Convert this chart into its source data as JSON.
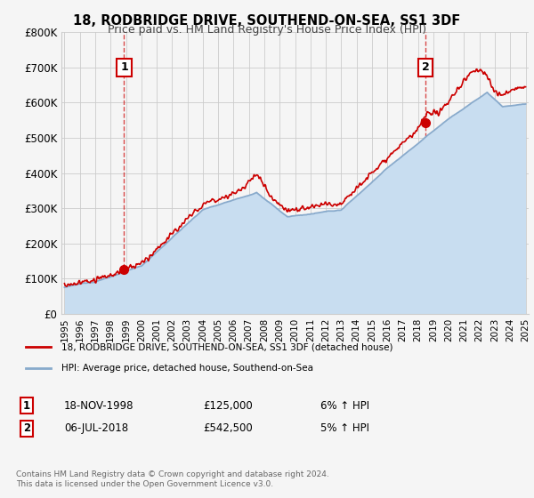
{
  "title": "18, RODBRIDGE DRIVE, SOUTHEND-ON-SEA, SS1 3DF",
  "subtitle": "Price paid vs. HM Land Registry's House Price Index (HPI)",
  "ylim": [
    0,
    800000
  ],
  "yticks": [
    0,
    100000,
    200000,
    300000,
    400000,
    500000,
    600000,
    700000,
    800000
  ],
  "ytick_labels": [
    "£0",
    "£100K",
    "£200K",
    "£300K",
    "£400K",
    "£500K",
    "£600K",
    "£700K",
    "£800K"
  ],
  "x_start_year": 1995,
  "x_end_year": 2025,
  "sale1_date": 1998.88,
  "sale1_price": 125000,
  "sale2_date": 2018.5,
  "sale2_price": 542500,
  "property_color": "#cc0000",
  "hpi_color": "#88aacc",
  "hpi_fill_color": "#c8ddf0",
  "background_color": "#f5f5f5",
  "grid_color": "#cccccc",
  "legend_label_property": "18, RODBRIDGE DRIVE, SOUTHEND-ON-SEA, SS1 3DF (detached house)",
  "legend_label_hpi": "HPI: Average price, detached house, Southend-on-Sea",
  "note1_label": "1",
  "note1_date": "18-NOV-1998",
  "note1_price": "£125,000",
  "note1_hpi": "6% ↑ HPI",
  "note2_label": "2",
  "note2_date": "06-JUL-2018",
  "note2_price": "£542,500",
  "note2_hpi": "5% ↑ HPI",
  "footer": "Contains HM Land Registry data © Crown copyright and database right 2024.\nThis data is licensed under the Open Government Licence v3.0."
}
